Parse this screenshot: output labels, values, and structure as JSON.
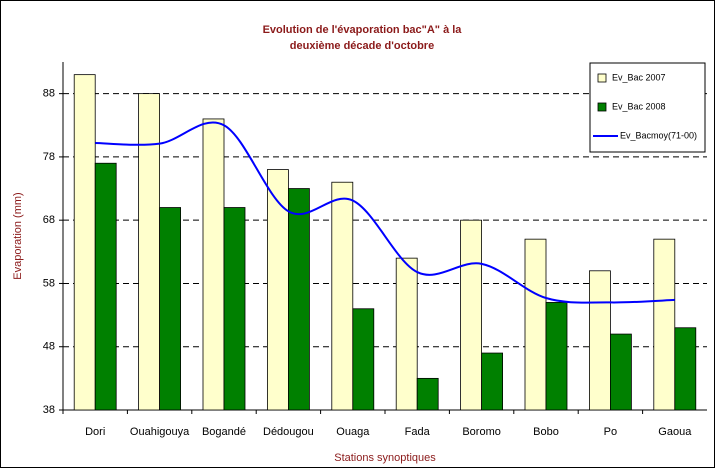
{
  "chart_data": {
    "type": "bar-line",
    "title": [
      "Evolution de l'évaporation bac\"A\" à la",
      "deuxième décade d'octobre"
    ],
    "x_label": "Stations synoptiques",
    "y_label": "Evaporation (mm)",
    "categories": [
      "Dori",
      "Ouahigouya",
      "Bogandé",
      "Dédougou",
      "Ouaga",
      "Fada",
      "Boromo",
      "Bobo",
      "Po",
      "Gaoua"
    ],
    "series": [
      {
        "name": "Ev_Bac 2007",
        "type": "bar",
        "color": "#ffffcc",
        "values": [
          91,
          88,
          84,
          76,
          74,
          62,
          68,
          65,
          60,
          65
        ]
      },
      {
        "name": "Ev_Bac 2008",
        "type": "bar",
        "color": "#008000",
        "values": [
          77,
          70,
          70,
          73,
          54,
          43,
          47,
          55,
          50,
          51
        ]
      },
      {
        "name": "Ev_Bacmoy(71-00)",
        "type": "line",
        "color": "#0000ff",
        "values": [
          80.2,
          80.1,
          83,
          69.4,
          71.1,
          59.8,
          61.1,
          55.7,
          55,
          55.4
        ]
      }
    ],
    "ylim": [
      38,
      93
    ],
    "yticks": [
      38,
      48,
      58,
      68,
      78,
      88
    ],
    "grid": true,
    "legend": "top-right"
  }
}
